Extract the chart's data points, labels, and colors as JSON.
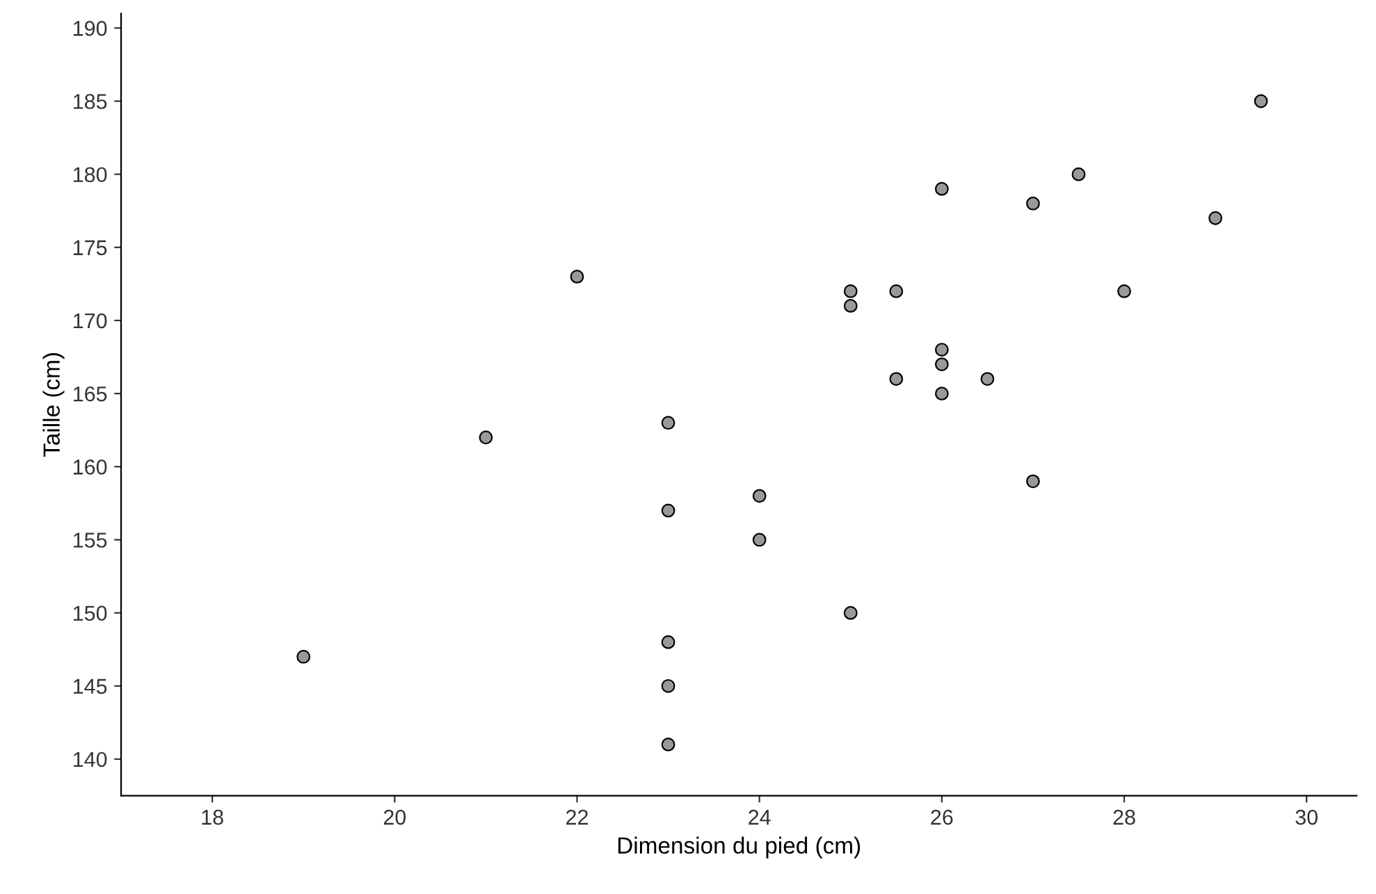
{
  "chart_data": {
    "type": "scatter",
    "xlabel": "Dimension du pied (cm)",
    "ylabel": "Taille (cm)",
    "x": [
      19,
      21,
      22,
      23,
      23,
      23,
      23,
      23,
      24,
      24,
      25,
      25,
      25,
      25.5,
      25.5,
      26,
      26,
      26,
      26,
      26.5,
      27,
      27,
      27.5,
      28,
      29,
      29.5
    ],
    "values": [
      147,
      162,
      173,
      163,
      157,
      148,
      145,
      141,
      158,
      155,
      172,
      171,
      150,
      172,
      166,
      179,
      168,
      167,
      165,
      166,
      178,
      159,
      180,
      172,
      177,
      185
    ],
    "color": "#999999",
    "marker": "circle",
    "grid": false,
    "xlim": [
      17,
      30.55
    ],
    "ylim": [
      137.5,
      191
    ],
    "xticks": [
      18,
      20,
      22,
      24,
      26,
      28,
      30
    ],
    "yticks": [
      140,
      145,
      150,
      155,
      160,
      165,
      170,
      175,
      180,
      185,
      190
    ]
  }
}
